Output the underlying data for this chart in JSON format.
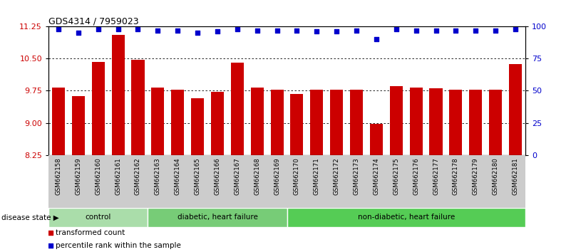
{
  "title": "GDS4314 / 7959023",
  "samples": [
    "GSM662158",
    "GSM662159",
    "GSM662160",
    "GSM662161",
    "GSM662162",
    "GSM662163",
    "GSM662164",
    "GSM662165",
    "GSM662166",
    "GSM662167",
    "GSM662168",
    "GSM662169",
    "GSM662170",
    "GSM662171",
    "GSM662172",
    "GSM662173",
    "GSM662174",
    "GSM662175",
    "GSM662176",
    "GSM662177",
    "GSM662178",
    "GSM662179",
    "GSM662180",
    "GSM662181"
  ],
  "bar_values": [
    9.82,
    9.62,
    10.43,
    11.05,
    10.48,
    9.83,
    9.78,
    9.57,
    9.72,
    10.4,
    9.83,
    9.77,
    9.68,
    9.77,
    9.78,
    9.78,
    8.98,
    9.85,
    9.83,
    9.8,
    9.78,
    9.78,
    9.78,
    10.37
  ],
  "percentile_values": [
    98,
    95,
    98,
    98,
    98,
    97,
    97,
    95,
    96,
    98,
    97,
    97,
    97,
    96,
    96,
    97,
    90,
    98,
    97,
    97,
    97,
    97,
    97,
    98
  ],
  "bar_color": "#cc0000",
  "percentile_color": "#0000cc",
  "ylim_left": [
    8.25,
    11.25
  ],
  "ylim_right": [
    0,
    100
  ],
  "yticks_left": [
    8.25,
    9.0,
    9.75,
    10.5,
    11.25
  ],
  "yticks_right": [
    0,
    25,
    50,
    75,
    100
  ],
  "grid_values": [
    9.0,
    9.75,
    10.5
  ],
  "groups": [
    {
      "label": "control",
      "start": 0,
      "end": 5
    },
    {
      "label": "diabetic, heart failure",
      "start": 5,
      "end": 12
    },
    {
      "label": "non-diabetic, heart failure",
      "start": 12,
      "end": 24
    }
  ],
  "group_colors": [
    "#aaddaa",
    "#77cc77",
    "#55cc55"
  ],
  "ylabel_left_color": "#cc0000",
  "ylabel_right_color": "#0000cc",
  "tick_area_color": "#cccccc",
  "legend_items": [
    {
      "label": "transformed count",
      "color": "#cc0000"
    },
    {
      "label": "percentile rank within the sample",
      "color": "#0000cc"
    }
  ],
  "disease_state_label": "disease state"
}
